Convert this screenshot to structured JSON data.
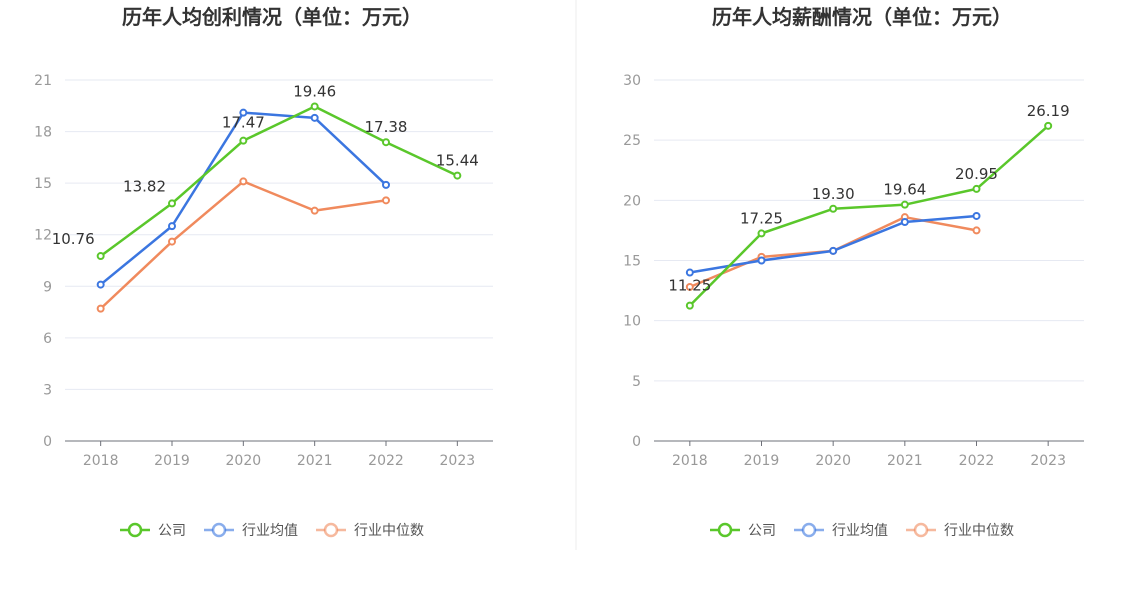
{
  "chart_data": [
    {
      "type": "line",
      "title": "历年人均创利情况（单位：万元）",
      "categories": [
        "2018",
        "2019",
        "2020",
        "2021",
        "2022",
        "2023"
      ],
      "yticks": [
        0,
        3,
        6,
        9,
        12,
        15,
        18,
        21
      ],
      "ylim": [
        0,
        21
      ],
      "grid": true,
      "legend": "bottom-center",
      "series": [
        {
          "name": "公司",
          "color": "#5ac72b",
          "values": [
            10.76,
            13.82,
            17.47,
            19.46,
            17.38,
            15.44
          ],
          "labels": [
            "10.76",
            "13.82",
            "17.47",
            "19.46",
            "17.38",
            "15.44"
          ]
        },
        {
          "name": "行业均值",
          "color": "#3b76e0",
          "values": [
            9.1,
            12.5,
            19.1,
            18.8,
            14.9,
            null
          ]
        },
        {
          "name": "行业中位数",
          "color": "#f08a5d",
          "values": [
            7.7,
            11.6,
            15.1,
            13.4,
            14.0,
            null
          ]
        }
      ]
    },
    {
      "type": "line",
      "title": "历年人均薪酬情况（单位：万元）",
      "categories": [
        "2018",
        "2019",
        "2020",
        "2021",
        "2022",
        "2023"
      ],
      "yticks": [
        0,
        5,
        10,
        15,
        20,
        25,
        30
      ],
      "ylim": [
        0,
        30
      ],
      "grid": true,
      "legend": "bottom-center",
      "series": [
        {
          "name": "公司",
          "color": "#5ac72b",
          "values": [
            11.25,
            17.25,
            19.3,
            19.64,
            20.95,
            26.19
          ],
          "labels": [
            "11.25",
            "17.25",
            "19.30",
            "19.64",
            "20.95",
            "26.19"
          ]
        },
        {
          "name": "行业均值",
          "color": "#3b76e0",
          "values": [
            14.0,
            15.0,
            15.8,
            18.2,
            18.7,
            null
          ]
        },
        {
          "name": "行业中位数",
          "color": "#f08a5d",
          "values": [
            12.8,
            15.3,
            15.8,
            18.6,
            17.5,
            null
          ]
        }
      ]
    }
  ]
}
